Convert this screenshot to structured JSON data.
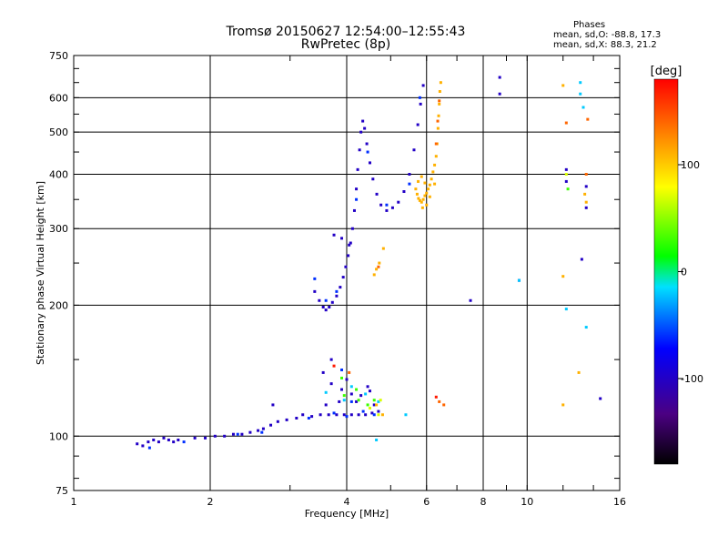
{
  "header": {
    "title_line1": "Tromsø 20150627 12:54:00–12:55:43",
    "title_line2": "RwPretec (8p)",
    "phase_title": "Phases",
    "phase_o": "mean, sd,O: -88.8, 17.3",
    "phase_x": "mean, sd,X: 88.3, 21.2"
  },
  "chart_data": {
    "type": "scatter",
    "title": "Tromsø 20150627 12:54:00–12:55:43",
    "subtitle": "RwPretec (8p)",
    "xlabel": "Frequency [MHz]",
    "ylabel": "Stationary phase Virtual Height [km]",
    "x_scale": "log",
    "y_scale": "log",
    "xlim": [
      1,
      16
    ],
    "ylim": [
      75,
      750
    ],
    "x_ticks": [
      1,
      2,
      4,
      6,
      8,
      10,
      16
    ],
    "y_ticks": [
      75,
      100,
      200,
      300,
      400,
      500,
      600,
      750
    ],
    "x_grid": [
      2,
      4,
      6,
      8,
      10
    ],
    "y_grid": [
      100,
      200,
      300,
      400,
      500,
      600
    ],
    "grid": true,
    "colorbar": {
      "label": "[deg]",
      "ticks": [
        100,
        0,
        -100
      ],
      "range": [
        -180,
        180
      ],
      "colormap": "rainbow"
    },
    "series": [
      {
        "phase_deg": -100,
        "points": [
          [
            1.38,
            96
          ],
          [
            1.42,
            95
          ],
          [
            1.46,
            97
          ],
          [
            1.5,
            98
          ],
          [
            1.54,
            97
          ],
          [
            1.58,
            99
          ],
          [
            1.62,
            98
          ],
          [
            1.66,
            97
          ],
          [
            1.7,
            98
          ],
          [
            1.85,
            99
          ],
          [
            1.95,
            99
          ],
          [
            2.05,
            100
          ],
          [
            2.15,
            100
          ],
          [
            2.25,
            101
          ],
          [
            2.35,
            101
          ],
          [
            2.45,
            102
          ],
          [
            2.55,
            103
          ],
          [
            2.62,
            104
          ],
          [
            2.72,
            106
          ],
          [
            2.82,
            108
          ],
          [
            2.95,
            109
          ],
          [
            3.1,
            110
          ],
          [
            3.2,
            112
          ],
          [
            3.35,
            111
          ],
          [
            3.5,
            112
          ],
          [
            3.65,
            112
          ],
          [
            3.8,
            112
          ],
          [
            3.95,
            112
          ],
          [
            4.1,
            112
          ],
          [
            4.25,
            112
          ],
          [
            4.4,
            112
          ],
          [
            4.55,
            113
          ],
          [
            4.7,
            114
          ],
          [
            3.4,
            215
          ],
          [
            3.48,
            205
          ],
          [
            3.55,
            198
          ],
          [
            3.6,
            195
          ],
          [
            3.66,
            198
          ],
          [
            3.72,
            203
          ],
          [
            3.8,
            210
          ],
          [
            3.87,
            220
          ],
          [
            3.93,
            232
          ],
          [
            3.98,
            245
          ],
          [
            4.03,
            260
          ],
          [
            4.08,
            278
          ],
          [
            4.12,
            300
          ],
          [
            4.16,
            330
          ],
          [
            4.2,
            370
          ],
          [
            4.23,
            410
          ],
          [
            4.27,
            455
          ],
          [
            4.3,
            500
          ],
          [
            4.34,
            530
          ],
          [
            4.38,
            510
          ],
          [
            4.43,
            470
          ],
          [
            4.5,
            425
          ],
          [
            4.57,
            390
          ],
          [
            4.66,
            360
          ],
          [
            4.76,
            340
          ],
          [
            4.9,
            330
          ],
          [
            5.05,
            335
          ],
          [
            5.2,
            345
          ],
          [
            5.35,
            365
          ],
          [
            5.5,
            400
          ],
          [
            5.63,
            455
          ],
          [
            5.74,
            520
          ],
          [
            5.82,
            580
          ],
          [
            5.9,
            640
          ],
          [
            3.75,
            290
          ],
          [
            3.9,
            285
          ],
          [
            4.05,
            275
          ],
          [
            3.55,
            140
          ],
          [
            3.7,
            132
          ],
          [
            3.9,
            128
          ],
          [
            4.1,
            125
          ],
          [
            4.3,
            124
          ],
          [
            4.5,
            127
          ],
          [
            4.6,
            118
          ],
          [
            3.6,
            118
          ],
          [
            3.85,
            120
          ],
          [
            4.2,
            120
          ],
          [
            4.45,
            130
          ],
          [
            3.7,
            150
          ],
          [
            4.0,
            135
          ],
          [
            8.7,
            668
          ],
          [
            8.7,
            612
          ],
          [
            9.6,
            228
          ],
          [
            7.5,
            205
          ],
          [
            12.2,
            410
          ],
          [
            12.2,
            385
          ],
          [
            13.5,
            375
          ],
          [
            13.5,
            335
          ],
          [
            13.2,
            255
          ],
          [
            14.5,
            122
          ],
          [
            2.75,
            118
          ]
        ]
      },
      {
        "phase_deg": -60,
        "points": [
          [
            1.47,
            94
          ],
          [
            1.75,
            97
          ],
          [
            2.3,
            101
          ],
          [
            2.6,
            102
          ],
          [
            3.3,
            110
          ],
          [
            3.75,
            113
          ],
          [
            4.0,
            111
          ],
          [
            4.35,
            114
          ],
          [
            4.6,
            112
          ],
          [
            3.4,
            230
          ],
          [
            3.6,
            205
          ],
          [
            3.8,
            215
          ],
          [
            4.2,
            350
          ],
          [
            4.45,
            450
          ],
          [
            4.9,
            340
          ],
          [
            5.5,
            380
          ],
          [
            5.8,
            600
          ],
          [
            4.1,
            120
          ],
          [
            3.9,
            142
          ]
        ]
      },
      {
        "phase_deg": -20,
        "points": [
          [
            4.4,
            125
          ],
          [
            4.7,
            120
          ],
          [
            4.1,
            130
          ],
          [
            3.95,
            121
          ],
          [
            5.4,
            112
          ],
          [
            4.65,
            98
          ],
          [
            3.6,
            126
          ],
          [
            9.6,
            228
          ],
          [
            12.2,
            196
          ],
          [
            13.3,
            570
          ],
          [
            13.1,
            650
          ],
          [
            13.1,
            612
          ],
          [
            13.5,
            178
          ]
        ]
      },
      {
        "phase_deg": 30,
        "points": [
          [
            4.25,
            121
          ],
          [
            4.45,
            118
          ],
          [
            3.95,
            124
          ],
          [
            4.6,
            121
          ],
          [
            3.9,
            136
          ],
          [
            12.3,
            370
          ],
          [
            4.2,
            128
          ]
        ]
      },
      {
        "phase_deg": 70,
        "points": [
          [
            4.7,
            112
          ],
          [
            4.5,
            116
          ],
          [
            4.75,
            121
          ],
          [
            12.2,
            400
          ]
        ]
      },
      {
        "phase_deg": 110,
        "points": [
          [
            5.68,
            370
          ],
          [
            5.72,
            360
          ],
          [
            5.76,
            352
          ],
          [
            5.8,
            348
          ],
          [
            5.85,
            345
          ],
          [
            5.9,
            350
          ],
          [
            5.95,
            357
          ],
          [
            6.0,
            362
          ],
          [
            6.05,
            370
          ],
          [
            6.1,
            378
          ],
          [
            6.15,
            390
          ],
          [
            6.2,
            405
          ],
          [
            6.25,
            420
          ],
          [
            6.3,
            440
          ],
          [
            6.33,
            470
          ],
          [
            6.36,
            510
          ],
          [
            6.38,
            545
          ],
          [
            6.4,
            580
          ],
          [
            6.42,
            620
          ],
          [
            6.45,
            650
          ],
          [
            5.75,
            385
          ],
          [
            5.85,
            395
          ],
          [
            5.95,
            382
          ],
          [
            6.0,
            340
          ],
          [
            5.88,
            335
          ],
          [
            6.1,
            355
          ],
          [
            6.25,
            380
          ],
          [
            4.6,
            235
          ],
          [
            4.72,
            250
          ],
          [
            4.82,
            270
          ],
          [
            4.65,
            242
          ],
          [
            12.0,
            233
          ],
          [
            12.0,
            118
          ],
          [
            13.0,
            140
          ],
          [
            13.5,
            345
          ],
          [
            13.4,
            360
          ],
          [
            12.0,
            640
          ],
          [
            4.8,
            112
          ],
          [
            4.65,
            118
          ]
        ]
      },
      {
        "phase_deg": 140,
        "points": [
          [
            6.35,
            530
          ],
          [
            6.4,
            590
          ],
          [
            6.3,
            470
          ],
          [
            4.7,
            245
          ],
          [
            12.2,
            525
          ],
          [
            13.6,
            535
          ],
          [
            13.5,
            400
          ],
          [
            6.4,
            120
          ],
          [
            6.55,
            118
          ],
          [
            4.05,
            140
          ]
        ]
      },
      {
        "phase_deg": 170,
        "points": [
          [
            3.75,
            145
          ],
          [
            6.3,
            123
          ]
        ]
      }
    ]
  }
}
